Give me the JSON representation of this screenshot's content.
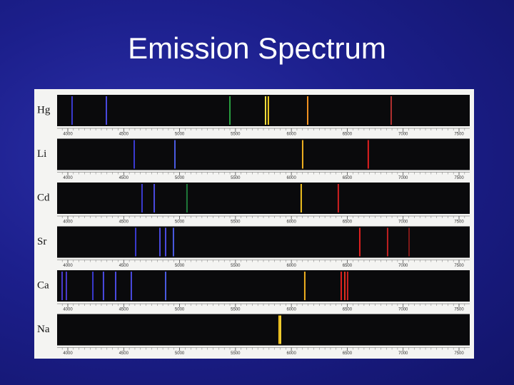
{
  "title": "Emission Spectrum",
  "spectra": {
    "ticks": [
      4000,
      4500,
      5000,
      5500,
      6000,
      6500,
      7000,
      7500
    ],
    "rows": [
      {
        "element": "Hg",
        "lines": [
          {
            "wavelength": 4038,
            "color": "#3a3ad0"
          },
          {
            "wavelength": 4345,
            "color": "#4a4ae0"
          },
          {
            "wavelength": 5450,
            "color": "#2aa040"
          },
          {
            "wavelength": 5769,
            "color": "#f0e040"
          },
          {
            "wavelength": 5794,
            "color": "#f5d020"
          },
          {
            "wavelength": 6146,
            "color": "#f09020"
          },
          {
            "wavelength": 6893,
            "color": "#b03030"
          }
        ]
      },
      {
        "element": "Li",
        "lines": [
          {
            "wavelength": 4594,
            "color": "#3a3ad0"
          },
          {
            "wavelength": 4958,
            "color": "#4a5ae0"
          },
          {
            "wavelength": 6101,
            "color": "#f0b020"
          },
          {
            "wavelength": 6688,
            "color": "#e02020"
          }
        ]
      },
      {
        "element": "Cd",
        "lines": [
          {
            "wavelength": 4664,
            "color": "#3a3ad0"
          },
          {
            "wavelength": 4773,
            "color": "#4a4ae0"
          },
          {
            "wavelength": 5066,
            "color": "#1f7a3a"
          },
          {
            "wavelength": 6088,
            "color": "#f0c020"
          },
          {
            "wavelength": 6420,
            "color": "#d02020"
          }
        ]
      },
      {
        "element": "Sr",
        "lines": [
          {
            "wavelength": 4607,
            "color": "#3a3ad0"
          },
          {
            "wavelength": 4824,
            "color": "#4a4ae0"
          },
          {
            "wavelength": 4875,
            "color": "#4a4ae0"
          },
          {
            "wavelength": 4945,
            "color": "#4a5ae0"
          },
          {
            "wavelength": 6612,
            "color": "#e02020"
          },
          {
            "wavelength": 6861,
            "color": "#c02020"
          },
          {
            "wavelength": 7053,
            "color": "#801818"
          }
        ]
      },
      {
        "element": "Ca",
        "lines": [
          {
            "wavelength": 3949,
            "color": "#4a3ad0"
          },
          {
            "wavelength": 3987,
            "color": "#4a3ad0"
          },
          {
            "wavelength": 4224,
            "color": "#3a3ad0"
          },
          {
            "wavelength": 4319,
            "color": "#4a4ae0"
          },
          {
            "wavelength": 4428,
            "color": "#4a4ae0"
          },
          {
            "wavelength": 4568,
            "color": "#4a4ae0"
          },
          {
            "wavelength": 4875,
            "color": "#4a5ae0"
          },
          {
            "wavelength": 6120,
            "color": "#f0b020"
          },
          {
            "wavelength": 6446,
            "color": "#e02020"
          },
          {
            "wavelength": 6478,
            "color": "#e03020"
          },
          {
            "wavelength": 6503,
            "color": "#d02020"
          }
        ]
      },
      {
        "element": "Na",
        "lines": [
          {
            "wavelength": 5890,
            "color": "#f0c020"
          },
          {
            "wavelength": 5903,
            "color": "#f5d030"
          }
        ]
      }
    ]
  }
}
